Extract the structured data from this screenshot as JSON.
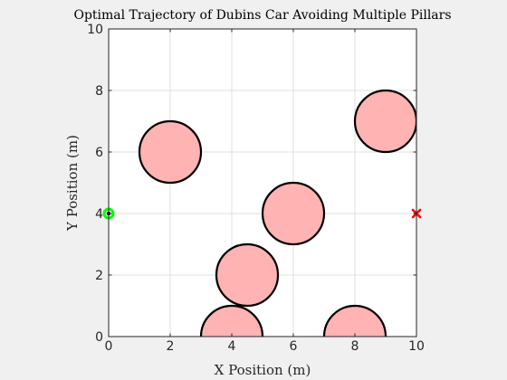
{
  "chart_data": {
    "type": "scatter",
    "title": "Optimal Trajectory of Dubins Car Avoiding Multiple Pillars",
    "xlabel": "X Position (m)",
    "ylabel": "Y Position (m)",
    "xlim": [
      0,
      10
    ],
    "ylim": [
      0,
      10
    ],
    "xticks": [
      0,
      2,
      4,
      6,
      8,
      10
    ],
    "yticks": [
      0,
      2,
      4,
      6,
      8,
      10
    ],
    "grid": true,
    "aspect": "equal",
    "obstacles": {
      "shape": "circle",
      "fill": "#ffb3b3",
      "edge": "#000000",
      "items": [
        {
          "cx": 2,
          "cy": 6,
          "r": 1
        },
        {
          "cx": 9,
          "cy": 7,
          "r": 1
        },
        {
          "cx": 6,
          "cy": 4,
          "r": 1
        },
        {
          "cx": 4.5,
          "cy": 2,
          "r": 1
        },
        {
          "cx": 4,
          "cy": 0,
          "r": 1
        },
        {
          "cx": 8,
          "cy": 0,
          "r": 1
        }
      ]
    },
    "start": {
      "x": 0,
      "y": 4,
      "marker": "circle",
      "color": "#00ff00",
      "center_color": "#000000"
    },
    "goal": {
      "x": 10,
      "y": 4,
      "marker": "x",
      "color": "#ff0000"
    }
  },
  "colors": {
    "background": "#f0f0f0",
    "axes_background": "#ffffff",
    "grid": "#dfdfdf",
    "axis_line": "#262626"
  }
}
